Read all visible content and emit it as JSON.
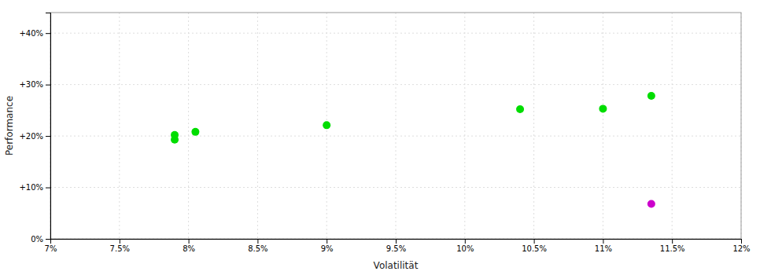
{
  "chart_data": {
    "type": "scatter",
    "x_label": "Volatilität",
    "y_label": "Performance",
    "xlim": [
      0.07,
      0.12
    ],
    "ylim": [
      0.0,
      0.44
    ],
    "xticks": [
      {
        "value": 0.07,
        "label": "7%"
      },
      {
        "value": 0.075,
        "label": "7.5%"
      },
      {
        "value": 0.08,
        "label": "8%"
      },
      {
        "value": 0.085,
        "label": "8.5%"
      },
      {
        "value": 0.09,
        "label": "9%"
      },
      {
        "value": 0.095,
        "label": "9.5%"
      },
      {
        "value": 0.1,
        "label": "10%"
      },
      {
        "value": 0.105,
        "label": "10.5%"
      },
      {
        "value": 0.11,
        "label": "11%"
      },
      {
        "value": 0.115,
        "label": "11.5%"
      },
      {
        "value": 0.12,
        "label": "12%"
      }
    ],
    "yticks": [
      {
        "value": 0.0,
        "label": "0%"
      },
      {
        "value": 0.1,
        "label": "+10%"
      },
      {
        "value": 0.2,
        "label": "+20%"
      },
      {
        "value": 0.3,
        "label": "+30%"
      },
      {
        "value": 0.4,
        "label": "+40%"
      }
    ],
    "grid": true,
    "series": [
      {
        "color": "#00dd00",
        "x": [
          0.079,
          0.0805,
          0.079,
          0.09,
          0.104,
          0.11,
          0.1135
        ],
        "values": [
          0.202,
          0.208,
          0.193,
          0.221,
          0.252,
          0.253,
          0.278
        ]
      },
      {
        "color": "#cc00cc",
        "x": [
          0.1135
        ],
        "values": [
          0.068
        ]
      }
    ]
  }
}
